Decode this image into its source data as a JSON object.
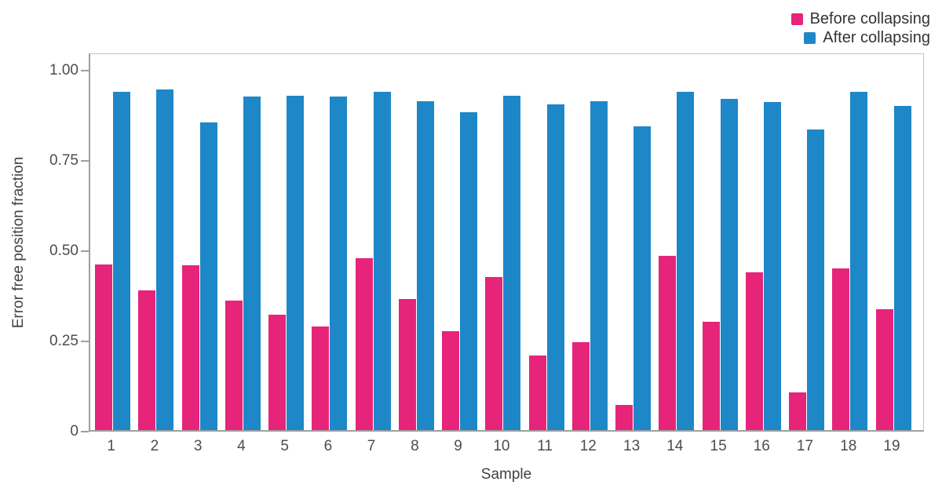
{
  "chart_data": {
    "type": "bar",
    "title": "",
    "xlabel": "Sample",
    "ylabel": "Error free position fraction",
    "categories": [
      "1",
      "2",
      "3",
      "4",
      "5",
      "6",
      "7",
      "8",
      "9",
      "10",
      "11",
      "12",
      "13",
      "14",
      "15",
      "16",
      "17",
      "18",
      "19"
    ],
    "series": [
      {
        "name": "Before collapsing",
        "color": "#e6247a",
        "values": [
          0.459,
          0.386,
          0.457,
          0.359,
          0.319,
          0.286,
          0.477,
          0.364,
          0.273,
          0.424,
          0.206,
          0.243,
          0.07,
          0.482,
          0.301,
          0.436,
          0.105,
          0.449,
          0.335
        ]
      },
      {
        "name": "After collapsing",
        "color": "#1e87c8",
        "values": [
          0.937,
          0.944,
          0.852,
          0.924,
          0.926,
          0.924,
          0.936,
          0.912,
          0.88,
          0.926,
          0.902,
          0.912,
          0.841,
          0.937,
          0.918,
          0.909,
          0.832,
          0.937,
          0.899
        ]
      }
    ],
    "ylim": [
      0,
      1.048
    ],
    "yticks": [
      {
        "label": "0",
        "value": 0
      },
      {
        "label": "0.25",
        "value": 0.25
      },
      {
        "label": "0.50",
        "value": 0.5
      },
      {
        "label": "0.75",
        "value": 0.75
      },
      {
        "label": "1.00",
        "value": 1.0
      }
    ],
    "grid": false,
    "legend_position": "top-right"
  }
}
